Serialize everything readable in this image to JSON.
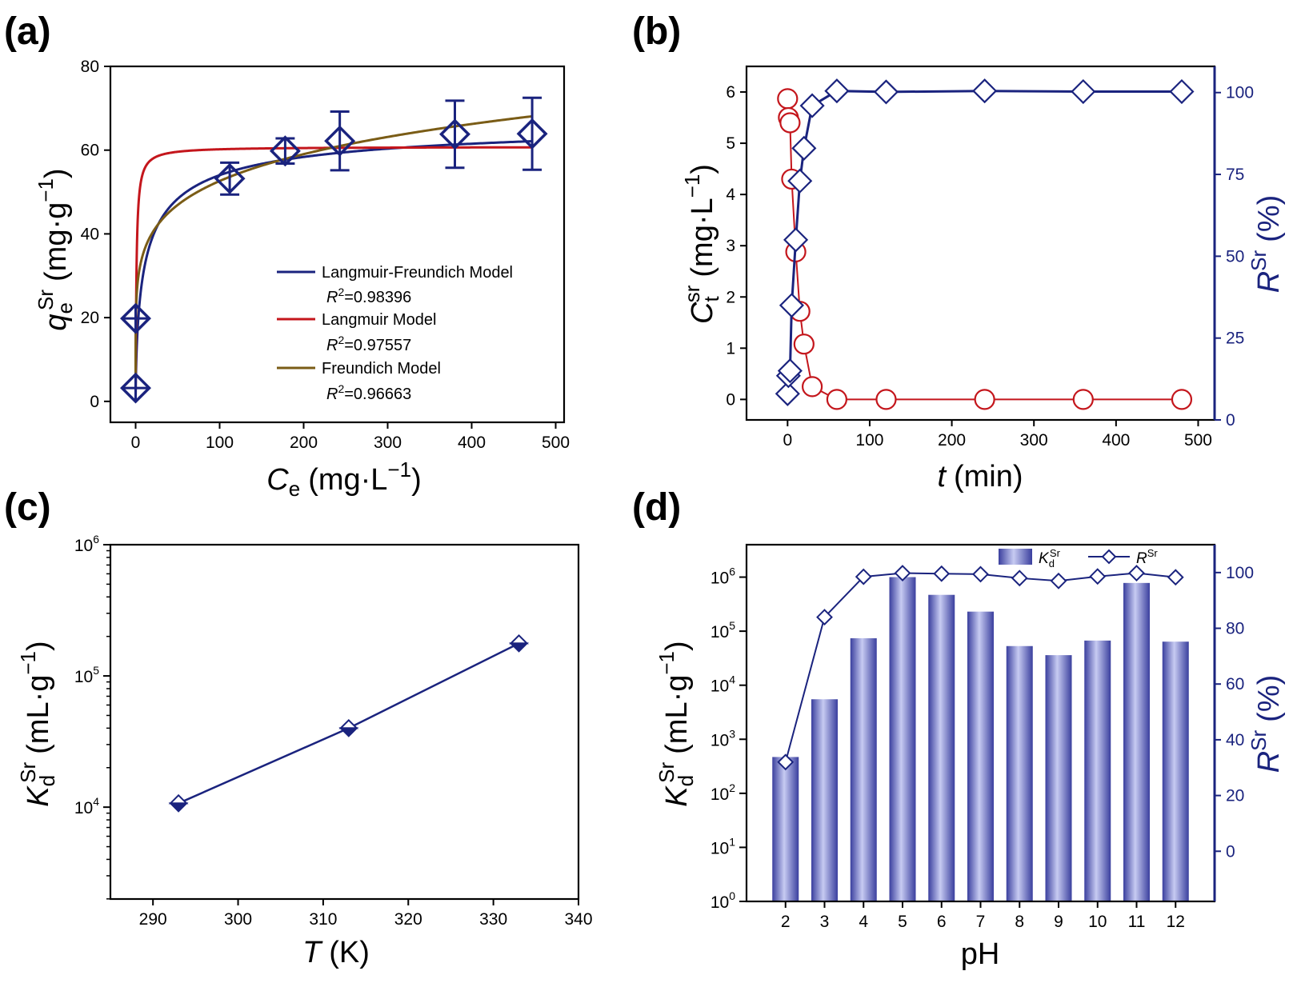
{
  "colors": {
    "navy": "#1a237e",
    "red": "#c4161c",
    "brown": "#7a5c16",
    "blueAxis": "#1a237e"
  },
  "panels": {
    "a": {
      "label": "(a)",
      "ylabel_main": "q",
      "ylabel_sub": "e",
      "ylabel_sup": "Sr",
      "ylabel_unit": "(mg·g",
      "ylabel_unit_sup": "−1",
      "ylabel_close": ")",
      "xlabel_main": "C",
      "xlabel_sub": "e",
      "xlabel_unit": "(mg·L",
      "xlabel_unit_sup": "−1",
      "xlabel_close": ")",
      "legend": [
        {
          "name": "Langmuir-Freundich Model",
          "r2_label": "R",
          "r2_value": "=0.98396"
        },
        {
          "name": "Langmuir Model",
          "r2_label": "R",
          "r2_value": "=0.97557"
        },
        {
          "name": "Freundich Model",
          "r2_label": "R",
          "r2_value": "=0.96663"
        }
      ]
    },
    "b": {
      "label": "(b)",
      "ylabel_main": "C",
      "ylabel_sub": "t",
      "ylabel_sup": "sr",
      "ylabel_unit": "(mg·L",
      "ylabel_unit_sup": "−1",
      "ylabel_close": ")",
      "y2label_main": "R",
      "y2label_sup": "Sr",
      "y2label_unit": "(%)",
      "xlabel_main": "t",
      "xlabel_unit": "(min)"
    },
    "c": {
      "label": "(c)",
      "ylabel_main": "K",
      "ylabel_sub": "d",
      "ylabel_sup": "Sr",
      "ylabel_unit": "(mL·g",
      "ylabel_unit_sup": "−1",
      "ylabel_close": ")",
      "xlabel_main": "T",
      "xlabel_unit": "(K)"
    },
    "d": {
      "label": "(d)",
      "ylabel_main": "K",
      "ylabel_sub": "d",
      "ylabel_sup": "Sr",
      "ylabel_unit": "(mL·g",
      "ylabel_unit_sup": "−1",
      "ylabel_close": ")",
      "y2label_main": "R",
      "y2label_sup": "Sr",
      "y2label_unit": "(%)",
      "xlabel": "pH",
      "legend_bar_main": "K",
      "legend_bar_sub": "d",
      "legend_bar_sup": "Sr",
      "legend_line_main": "R",
      "legend_line_sup": "Sr"
    }
  },
  "chart_data": [
    {
      "id": "a",
      "type": "scatter",
      "xlim": [
        -30,
        510
      ],
      "ylim": [
        -5,
        80
      ],
      "xticks": [
        "0",
        "100",
        "200",
        "300",
        "400",
        "500"
      ],
      "xtick_values": [
        0,
        100,
        200,
        300,
        400,
        500
      ],
      "yticks": [
        "0",
        "20",
        "40",
        "60",
        "80"
      ],
      "ytick_values": [
        0,
        20,
        40,
        60,
        80
      ],
      "points": {
        "x": [
          0,
          0,
          112,
          178,
          243,
          380,
          472
        ],
        "y": [
          3.2,
          19.8,
          53.2,
          59.8,
          62.2,
          63.8,
          63.9
        ],
        "err": [
          0,
          0,
          3.8,
          3.0,
          7.0,
          8.0,
          8.6
        ]
      },
      "series": [
        {
          "name": "Langmuir-Freundich Model",
          "model": "lf",
          "qmax": 68,
          "b": 0.08,
          "n": 0.65
        },
        {
          "name": "Langmuir Model",
          "model": "langmuir",
          "qmax": 60.8,
          "b": 1.0
        },
        {
          "name": "Freundich Model",
          "model": "freundlich",
          "k": 24.5,
          "n": 0.166
        }
      ]
    },
    {
      "id": "b",
      "type": "line",
      "xlim": [
        -50,
        520
      ],
      "ylim": [
        -0.4,
        6.5
      ],
      "y2lim": [
        0,
        108
      ],
      "xticks": [
        "0",
        "100",
        "200",
        "300",
        "400",
        "500"
      ],
      "xtick_values": [
        0,
        100,
        200,
        300,
        400,
        500
      ],
      "yticks": [
        "0",
        "1",
        "2",
        "3",
        "4",
        "5",
        "6"
      ],
      "ytick_values": [
        0,
        1,
        2,
        3,
        4,
        5,
        6
      ],
      "y2ticks": [
        "0",
        "25",
        "50",
        "75",
        "100"
      ],
      "y2tick_values": [
        0,
        25,
        50,
        75,
        100
      ],
      "series": [
        {
          "name": "Ct",
          "axis": "left",
          "x": [
            0,
            1,
            3,
            5,
            10,
            15,
            20,
            30,
            60,
            120,
            240,
            360,
            480
          ],
          "y": [
            5.87,
            5.5,
            5.4,
            4.3,
            2.88,
            1.72,
            1.08,
            0.25,
            0.0,
            0.0,
            0.0,
            0.0,
            0.0
          ]
        },
        {
          "name": "R",
          "axis": "right",
          "x": [
            0,
            1,
            3,
            5,
            10,
            15,
            20,
            30,
            60,
            120,
            240,
            360,
            480
          ],
          "y": [
            8,
            13.5,
            15,
            35,
            55,
            73,
            83,
            96,
            100.5,
            100.2,
            100.5,
            100.3,
            100.3
          ]
        }
      ]
    },
    {
      "id": "c",
      "type": "line",
      "xlim": [
        285,
        340
      ],
      "ylim_log": [
        3.3,
        6.0
      ],
      "xticks": [
        "290",
        "300",
        "310",
        "320",
        "330",
        "340"
      ],
      "xtick_values": [
        290,
        300,
        310,
        320,
        330,
        340
      ],
      "ytick_base": "10",
      "ytick_exps": [
        "4",
        "5",
        "6"
      ],
      "ytick_exp_values": [
        4,
        5,
        6
      ],
      "series": [
        {
          "name": "Kd",
          "x": [
            293,
            313,
            333
          ],
          "y": [
            10700,
            40000,
            177000
          ]
        }
      ]
    },
    {
      "id": "d",
      "type": "bar",
      "categories": [
        "2",
        "3",
        "4",
        "5",
        "6",
        "7",
        "8",
        "9",
        "10",
        "11",
        "12"
      ],
      "category_values": [
        2,
        3,
        4,
        5,
        6,
        7,
        8,
        9,
        10,
        11,
        12
      ],
      "xlim": [
        1,
        13
      ],
      "ylim_log": [
        0,
        6.6
      ],
      "y2lim": [
        -18,
        110
      ],
      "ytick_base": "10",
      "ytick_exps": [
        "0",
        "1",
        "2",
        "3",
        "4",
        "5",
        "6"
      ],
      "ytick_exp_values": [
        0,
        1,
        2,
        3,
        4,
        5,
        6
      ],
      "y2ticks": [
        "0",
        "20",
        "40",
        "60",
        "80",
        "100"
      ],
      "y2tick_values": [
        0,
        20,
        40,
        60,
        80,
        100
      ],
      "series": [
        {
          "name": "Kd",
          "type": "bar",
          "axis": "left",
          "values": [
            470,
            5500,
            74000,
            1000000,
            470000,
            230000,
            53000,
            36000,
            67000,
            780000,
            64000
          ]
        },
        {
          "name": "R",
          "type": "line",
          "axis": "right",
          "values": [
            32,
            84,
            98.5,
            99.8,
            99.6,
            99.4,
            98,
            97,
            98.6,
            99.8,
            98.3
          ]
        }
      ]
    }
  ]
}
